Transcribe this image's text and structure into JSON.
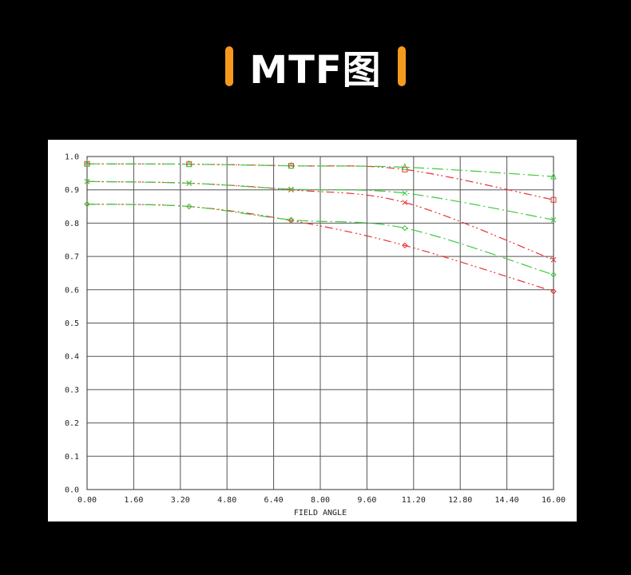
{
  "page": {
    "title": "MTF图",
    "accent_color": "#f59a1c",
    "background": "#000000"
  },
  "chart_data": {
    "type": "line",
    "title": "",
    "xlabel": "FIELD ANGLE",
    "ylabel": "",
    "xlim": [
      0,
      16
    ],
    "ylim": [
      0,
      1
    ],
    "grid": true,
    "x_ticks": [
      "0.00",
      "1.60",
      "3.20",
      "4.80",
      "6.40",
      "8.00",
      "9.60",
      "11.20",
      "12.80",
      "14.40",
      "16.00"
    ],
    "y_ticks": [
      "0.0",
      "0.1",
      "0.2",
      "0.3",
      "0.4",
      "0.5",
      "0.6",
      "0.7",
      "0.8",
      "0.9",
      "1.0"
    ],
    "series": [
      {
        "color": "#e83030",
        "dash": "dashdotdot",
        "marker": "square",
        "x": [
          0,
          3.5,
          7.0,
          10.9,
          16.0
        ],
        "y": [
          0.978,
          0.977,
          0.972,
          0.961,
          0.87
        ]
      },
      {
        "color": "#3fc93f",
        "dash": "dashdot",
        "marker": "triangle",
        "x": [
          0,
          3.5,
          7.0,
          10.9,
          16.0
        ],
        "y": [
          0.978,
          0.977,
          0.972,
          0.968,
          0.94
        ]
      },
      {
        "color": "#e83030",
        "dash": "dashdotdot",
        "marker": "x",
        "x": [
          0,
          3.5,
          7.0,
          10.9,
          16.0
        ],
        "y": [
          0.925,
          0.92,
          0.9,
          0.862,
          0.69
        ]
      },
      {
        "color": "#3fc93f",
        "dash": "dashdot",
        "marker": "x",
        "x": [
          0,
          3.5,
          7.0,
          10.9,
          16.0
        ],
        "y": [
          0.925,
          0.92,
          0.902,
          0.89,
          0.81
        ]
      },
      {
        "color": "#e83030",
        "dash": "dashdotdot",
        "marker": "diamond",
        "x": [
          0,
          3.5,
          7.0,
          10.9,
          16.0
        ],
        "y": [
          0.857,
          0.85,
          0.808,
          0.733,
          0.595
        ]
      },
      {
        "color": "#3fc93f",
        "dash": "dashdot",
        "marker": "diamond",
        "x": [
          0,
          3.5,
          7.0,
          10.9,
          16.0
        ],
        "y": [
          0.857,
          0.85,
          0.81,
          0.785,
          0.645
        ]
      }
    ]
  }
}
